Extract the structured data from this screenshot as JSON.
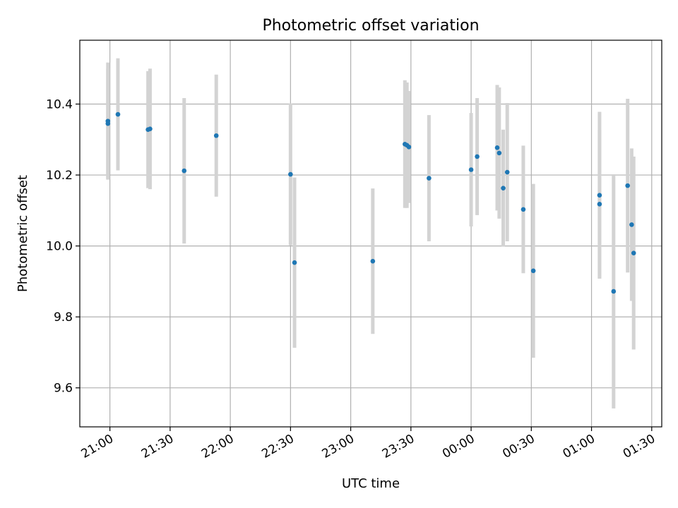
{
  "chart_data": {
    "type": "scatter",
    "title": "Photometric offset variation",
    "xlabel": "UTC time",
    "ylabel": "Photometric offset",
    "x_unit": "UTC clock time (hours, crosses midnight)",
    "xlim": [
      "20:45",
      "01:35"
    ],
    "ylim": [
      9.49,
      10.58
    ],
    "x_ticks": [
      "21:00",
      "21:30",
      "22:00",
      "22:30",
      "23:00",
      "23:30",
      "00:00",
      "00:30",
      "01:00",
      "01:30"
    ],
    "y_ticks": [
      "9.6",
      "9.8",
      "10.0",
      "10.2",
      "10.4"
    ],
    "grid": true,
    "marker_color": "#1f77b4",
    "errorbar_color": "#d3d3d3",
    "points": [
      {
        "x": "20:59",
        "y": 10.345,
        "yerr": 0.155
      },
      {
        "x": "20:59",
        "y": 10.352,
        "yerr": 0.165
      },
      {
        "x": "21:04",
        "y": 10.371,
        "yerr": 0.158
      },
      {
        "x": "21:19",
        "y": 10.328,
        "yerr": 0.165
      },
      {
        "x": "21:20",
        "y": 10.33,
        "yerr": 0.17
      },
      {
        "x": "21:37",
        "y": 10.212,
        "yerr": 0.205
      },
      {
        "x": "21:53",
        "y": 10.311,
        "yerr": 0.172
      },
      {
        "x": "22:30",
        "y": 10.202,
        "yerr": 0.2
      },
      {
        "x": "22:32",
        "y": 9.953,
        "yerr": 0.24
      },
      {
        "x": "23:11",
        "y": 9.957,
        "yerr": 0.205
      },
      {
        "x": "23:27",
        "y": 10.287,
        "yerr": 0.18
      },
      {
        "x": "23:28",
        "y": 10.284,
        "yerr": 0.177
      },
      {
        "x": "23:29",
        "y": 10.279,
        "yerr": 0.158
      },
      {
        "x": "23:39",
        "y": 10.191,
        "yerr": 0.178
      },
      {
        "x": "00:00",
        "y": 10.215,
        "yerr": 0.16
      },
      {
        "x": "00:03",
        "y": 10.252,
        "yerr": 0.165
      },
      {
        "x": "00:13",
        "y": 10.277,
        "yerr": 0.177
      },
      {
        "x": "00:14",
        "y": 10.262,
        "yerr": 0.185
      },
      {
        "x": "00:16",
        "y": 10.163,
        "yerr": 0.165
      },
      {
        "x": "00:18",
        "y": 10.208,
        "yerr": 0.195
      },
      {
        "x": "00:26",
        "y": 10.103,
        "yerr": 0.18
      },
      {
        "x": "00:31",
        "y": 9.93,
        "yerr": 0.245
      },
      {
        "x": "01:04",
        "y": 10.118,
        "yerr": 0.21
      },
      {
        "x": "01:04",
        "y": 10.143,
        "yerr": 0.235
      },
      {
        "x": "01:11",
        "y": 9.872,
        "yerr": 0.33
      },
      {
        "x": "01:18",
        "y": 10.17,
        "yerr": 0.245
      },
      {
        "x": "01:20",
        "y": 10.06,
        "yerr": 0.215
      },
      {
        "x": "01:21",
        "y": 9.98,
        "yerr": 0.272
      }
    ]
  }
}
